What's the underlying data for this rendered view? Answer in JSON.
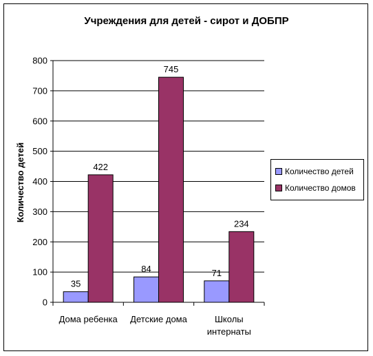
{
  "chart_data": {
    "type": "bar",
    "title": "Учреждения для детей - сирот и ДОБПР",
    "ylabel": "Количество детей",
    "xlabel": "",
    "categories": [
      "Дома ребенка",
      "Детские дома",
      "Школы интернаты"
    ],
    "category_lines": [
      [
        "Дома ребенка"
      ],
      [
        "Детские дома"
      ],
      [
        "Школы",
        "интернаты"
      ]
    ],
    "series": [
      {
        "name": "Количество детей",
        "values": [
          35,
          84,
          71
        ],
        "color": "#9999FF"
      },
      {
        "name": "Количество домов",
        "values": [
          422,
          745,
          234
        ],
        "color": "#993366"
      }
    ],
    "ylim": [
      0,
      800
    ],
    "yticks": [
      0,
      100,
      200,
      300,
      400,
      500,
      600,
      700,
      800
    ],
    "grid": true,
    "legend_position": "right"
  }
}
